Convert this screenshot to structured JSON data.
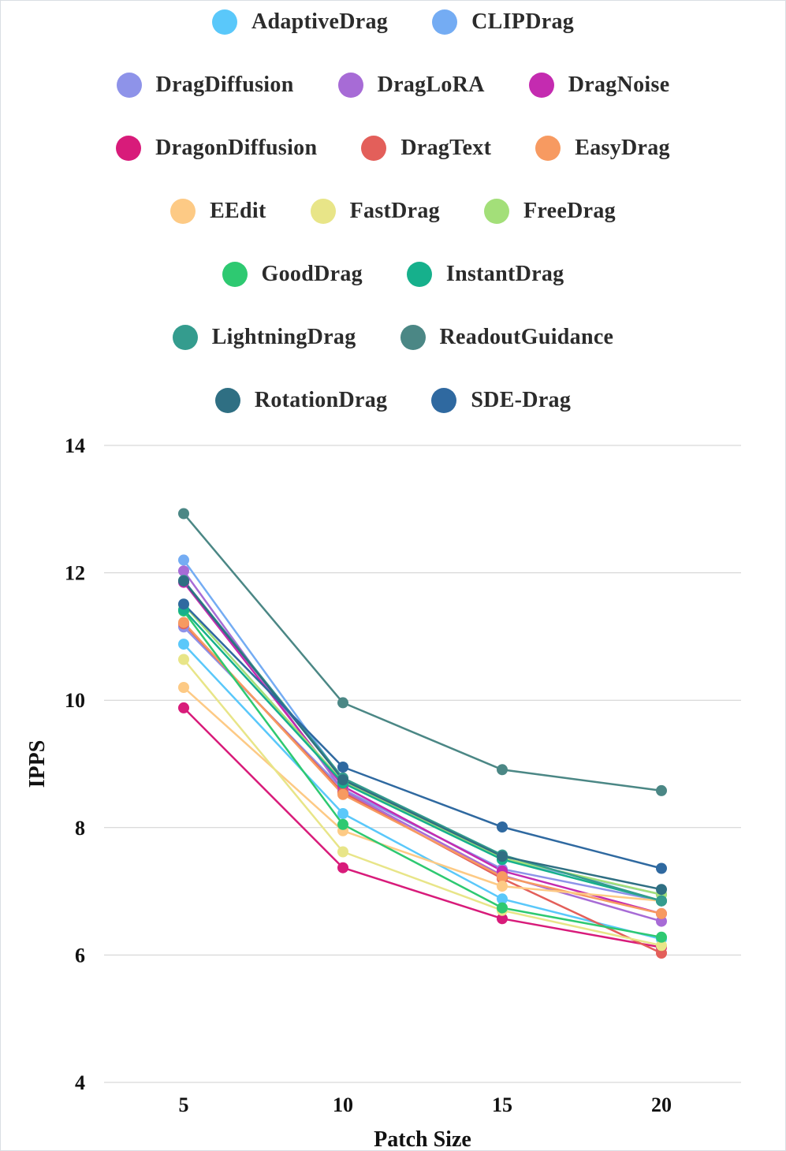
{
  "chart_data": {
    "type": "line",
    "title": "",
    "xlabel": "Patch Size",
    "ylabel": "IPPS",
    "x": [
      5,
      10,
      15,
      20
    ],
    "x_tick_labels": [
      "5",
      "10",
      "15",
      "20"
    ],
    "y_ticks": [
      4,
      6,
      8,
      10,
      12,
      14
    ],
    "y_tick_labels": [
      "4",
      "6",
      "8",
      "10",
      "12",
      "14"
    ],
    "ylim": [
      4,
      14
    ],
    "grid": true,
    "legend_position": "top-center",
    "series": [
      {
        "name": "AdaptiveDrag",
        "color": "#5ac8fa",
        "values": [
          10.88,
          8.22,
          6.88,
          6.25
        ]
      },
      {
        "name": "CLIPDrag",
        "color": "#74acf3",
        "values": [
          12.2,
          8.75,
          7.5,
          6.95
        ]
      },
      {
        "name": "DragDiffusion",
        "color": "#8e93e9",
        "values": [
          11.15,
          8.6,
          7.35,
          6.85
        ]
      },
      {
        "name": "DragLoRA",
        "color": "#a76bd6",
        "values": [
          12.03,
          8.58,
          7.25,
          6.53
        ]
      },
      {
        "name": "DragNoise",
        "color": "#c42bb0",
        "values": [
          11.85,
          8.65,
          7.32,
          6.65
        ]
      },
      {
        "name": "DragonDiffusion",
        "color": "#d81b7a",
        "values": [
          9.88,
          7.37,
          6.57,
          6.12
        ]
      },
      {
        "name": "DragText",
        "color": "#e35f5a",
        "values": [
          11.2,
          8.55,
          7.2,
          6.03
        ]
      },
      {
        "name": "EasyDrag",
        "color": "#f79a61",
        "values": [
          11.22,
          8.52,
          7.23,
          6.65
        ]
      },
      {
        "name": "EEdit",
        "color": "#fdca85",
        "values": [
          10.2,
          7.95,
          7.08,
          6.85
        ]
      },
      {
        "name": "FastDrag",
        "color": "#e8e588",
        "values": [
          10.64,
          7.62,
          6.7,
          6.15
        ]
      },
      {
        "name": "FreeDrag",
        "color": "#a3df79",
        "values": [
          11.5,
          8.72,
          7.52,
          6.95
        ]
      },
      {
        "name": "GoodDrag",
        "color": "#2ec971",
        "values": [
          11.4,
          8.05,
          6.74,
          6.28
        ]
      },
      {
        "name": "InstantDrag",
        "color": "#16b08c",
        "values": [
          11.42,
          8.7,
          7.5,
          6.85
        ]
      },
      {
        "name": "LightningDrag",
        "color": "#349c8e",
        "values": [
          11.88,
          8.78,
          7.57,
          6.85
        ]
      },
      {
        "name": "ReadoutGuidance",
        "color": "#4b8785",
        "values": [
          12.93,
          9.96,
          8.91,
          8.58
        ]
      },
      {
        "name": "RotationDrag",
        "color": "#2f6f83",
        "values": [
          11.87,
          8.75,
          7.55,
          7.03
        ]
      },
      {
        "name": "SDE-Drag",
        "color": "#2f69a0",
        "values": [
          11.51,
          8.95,
          8.01,
          7.36
        ]
      }
    ]
  }
}
